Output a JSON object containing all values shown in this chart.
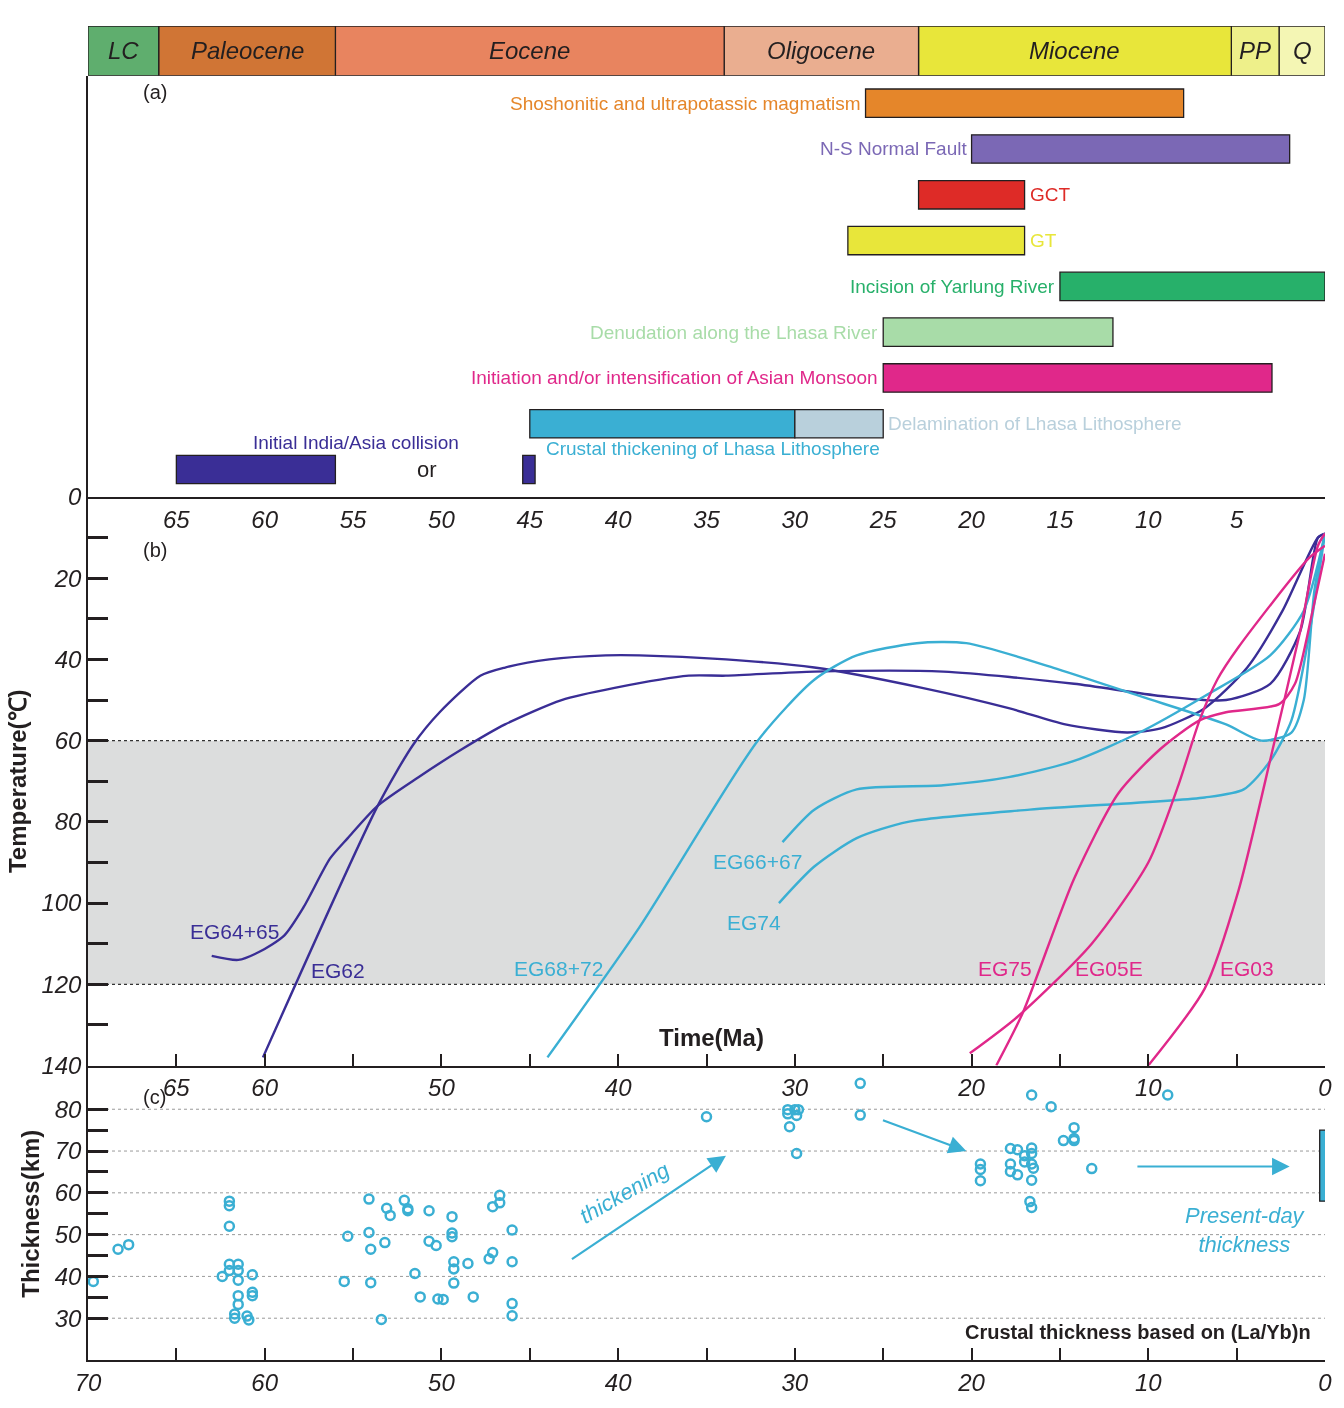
{
  "chart_data": [
    {
      "type": "bar",
      "orientation": "horizontal",
      "stacked": true,
      "categories": [
        null
      ],
      "xlim": [
        70,
        0
      ],
      "tick_labels": false,
      "series": [
        {
          "name": "Q",
          "color": "#f4f6b4",
          "values": [
            2.6
          ]
        },
        {
          "name": "PP",
          "color": "#eef08a",
          "values": [
            2.7
          ]
        },
        {
          "name": "Miocene",
          "color": "#e8e63a",
          "values": [
            17.7
          ]
        },
        {
          "name": "Oligocene",
          "color": "#eaae90",
          "values": [
            11
          ]
        },
        {
          "name": "Eocene",
          "color": "#e8845f",
          "values": [
            22
          ]
        },
        {
          "name": "Paleocene",
          "color": "#d07535",
          "values": [
            10
          ]
        },
        {
          "name": "LC",
          "color": "#5fae6e",
          "values": [
            4
          ]
        }
      ]
    },
    {
      "type": "bar",
      "orientation": "horizontal",
      "categories": [
        null,
        null,
        null,
        null,
        null,
        null,
        null,
        null,
        null
      ],
      "xlim": [
        70,
        0
      ],
      "xticks": [
        65,
        60,
        55,
        50,
        45,
        40,
        35,
        30,
        25,
        20,
        15,
        10,
        5
      ],
      "tick_labels": "x",
      "annotations": [
        "(a)",
        "or"
      ],
      "series": [
        {
          "name": "Shoshonitic and ultrapotassic magmatism",
          "color": "#e5862a",
          "values": [
            18,
            null,
            null,
            null,
            null,
            null,
            null,
            null,
            null
          ],
          "base": [
            8,
            null,
            null,
            null,
            null,
            null,
            null,
            null,
            null
          ]
        },
        {
          "name": "N-S Normal Fault",
          "color": "#7b68b5",
          "values": [
            null,
            18,
            null,
            null,
            null,
            null,
            null,
            null,
            null
          ],
          "base": [
            null,
            2,
            null,
            null,
            null,
            null,
            null,
            null,
            null
          ]
        },
        {
          "name": "GCT",
          "color": "#de2b27",
          "values": [
            null,
            null,
            6,
            null,
            null,
            null,
            null,
            null,
            null
          ],
          "base": [
            null,
            null,
            17,
            null,
            null,
            null,
            null,
            null,
            null
          ]
        },
        {
          "name": "GT",
          "color": "#e8e63a",
          "values": [
            null,
            null,
            null,
            10,
            null,
            null,
            null,
            null,
            null
          ],
          "base": [
            null,
            null,
            null,
            17,
            null,
            null,
            null,
            null,
            null
          ]
        },
        {
          "name": "Incision of Yarlung River",
          "color": "#27b06a",
          "values": [
            null,
            null,
            null,
            null,
            15,
            null,
            null,
            null,
            null
          ],
          "base": [
            null,
            null,
            null,
            null,
            0,
            null,
            null,
            null,
            null
          ]
        },
        {
          "name": "Denudation along the Lhasa River",
          "color": "#a8dca8",
          "values": [
            null,
            null,
            null,
            null,
            null,
            13,
            null,
            null,
            null
          ],
          "base": [
            null,
            null,
            null,
            null,
            null,
            12,
            null,
            null,
            null
          ]
        },
        {
          "name": "Initiation and/or intensification of Asian Monsoon",
          "color": "#e0288a",
          "values": [
            null,
            null,
            null,
            null,
            null,
            null,
            22,
            null,
            null
          ],
          "base": [
            null,
            null,
            null,
            null,
            null,
            null,
            3,
            null,
            null
          ]
        },
        {
          "name": "Crustal thickening of Lhasa Lithosphere",
          "color": "#3aafd3",
          "values": [
            null,
            null,
            null,
            null,
            null,
            null,
            null,
            15,
            null
          ],
          "base": [
            null,
            null,
            null,
            null,
            null,
            null,
            null,
            30,
            null
          ]
        },
        {
          "name": "Delamination of Lhasa Lithosphere",
          "color": "#b9d0dc",
          "values": [
            null,
            null,
            null,
            null,
            null,
            null,
            null,
            5,
            null
          ],
          "base": [
            null,
            null,
            null,
            null,
            null,
            null,
            null,
            25,
            null
          ]
        },
        {
          "name": "Initial India/Asia collision",
          "color": "#3a2e96",
          "values": [
            null,
            null,
            null,
            null,
            null,
            null,
            null,
            null,
            9
          ],
          "base": [
            null,
            null,
            null,
            null,
            null,
            null,
            null,
            null,
            56
          ]
        },
        {
          "color": "#3a2e96",
          "values": [
            null,
            null,
            null,
            null,
            null,
            null,
            null,
            null,
            0.7
          ],
          "base": [
            null,
            null,
            null,
            null,
            null,
            null,
            null,
            null,
            44.7
          ]
        }
      ]
    },
    {
      "type": "line",
      "xlabel": "Time(Ma)",
      "ylabel": "Temperature(℃)",
      "xlim": [
        70,
        0
      ],
      "ylim": [
        140,
        0
      ],
      "xticks": [
        65,
        60,
        {
          "value": 55,
          "label": null
        },
        50,
        {
          "value": 45,
          "label": null
        },
        40,
        {
          "value": 35,
          "label": null
        },
        30,
        {
          "value": 25,
          "label": null
        },
        20,
        {
          "value": 15,
          "label": null
        },
        10,
        {
          "value": 5,
          "label": null
        },
        0
      ],
      "yticks": [
        0,
        20,
        40,
        60,
        80,
        100,
        120,
        140
      ],
      "bands": [
        {
          "axis": "y",
          "from": 60,
          "to": 120,
          "color": "#dcdddd"
        }
      ],
      "annotations": [
        "(b)"
      ],
      "series": [
        {
          "name": "EG64+65",
          "color": "#3a2e96",
          "x": [
            63,
            61.5,
            60.3,
            58.9,
            57.8,
            56.3,
            55.3,
            53.6,
            51.3,
            48.8,
            46.4,
            43.2,
            40.2,
            36,
            33.9,
            28.9,
            21.6,
            14.2,
            9.3,
            5.6,
            3.1,
            1.4,
            0.4,
            0
          ],
          "values": [
            113,
            114,
            112,
            108,
            101,
            89,
            84,
            76,
            69,
            62,
            56,
            50,
            47,
            44,
            44,
            43,
            43,
            46,
            49,
            50,
            46,
            33,
            10,
            9
          ]
        },
        {
          "name": "EG62",
          "color": "#3a2e96",
          "x": [
            60.1,
            53.6,
            51.6,
            50.1,
            47.8,
            46.4,
            43.9,
            40.7,
            38.8,
            33.9,
            28.9,
            22.8,
            17.9,
            14.7,
            11.2,
            9.3,
            6.8,
            4.4,
            2.4,
            0.4,
            0
          ],
          "values": [
            138,
            76,
            61,
            53,
            44,
            42,
            40,
            39,
            39,
            40,
            42,
            47,
            52,
            56,
            58,
            57,
            52,
            42,
            28,
            10,
            9
          ]
        },
        {
          "name": "EG68+72",
          "color": "#3aafd3",
          "x": [
            44,
            38.8,
            32.1,
            28.9,
            26.5,
            23.1,
            20.3,
            15.4,
            10.5,
            5.6,
            3.6,
            1.9,
            1.2,
            0.6,
            0
          ],
          "values": [
            138,
            106,
            60,
            45,
            39,
            36,
            36,
            42,
            49,
            56,
            60,
            58,
            50,
            23,
            9
          ]
        },
        {
          "name": "EG66+67",
          "color": "#3aafd3",
          "x": [
            30.7,
            28.9,
            26.5,
            21.6,
            17.9,
            14.2,
            10.5,
            6.8,
            3.1,
            1.2,
            0
          ],
          "values": [
            85,
            77,
            72,
            71,
            69,
            65,
            58,
            49,
            39,
            28,
            9
          ]
        },
        {
          "name": "EG74",
          "color": "#3aafd3",
          "x": [
            30.9,
            28.9,
            26.5,
            23.6,
            16.7,
            6.8,
            4.6,
            3.1,
            1.9,
            0.9,
            0
          ],
          "values": [
            100,
            91,
            84,
            80,
            77,
            74,
            72,
            65,
            55,
            34,
            9
          ]
        },
        {
          "name": "EG75",
          "color": "#e0288a",
          "x": [
            18.6,
            17.1,
            14.2,
            11.7,
            9.3,
            7.1,
            5.6,
            2.6,
            1.7,
            0.7,
            0
          ],
          "values": [
            140,
            127,
            94,
            73,
            62,
            55,
            53,
            51,
            46,
            28,
            14
          ]
        },
        {
          "name": "EG05E",
          "color": "#e0288a",
          "x": [
            20.1,
            17.4,
            13.2,
            10,
            8.3,
            7.1,
            6.1,
            4.9,
            0.9,
            0
          ],
          "values": [
            137,
            128,
            110,
            90,
            71,
            55,
            45,
            37,
            15,
            12
          ]
        },
        {
          "name": "EG03",
          "color": "#e0288a",
          "x": [
            10,
            6.8,
            4.9,
            2.9,
            1.4,
            0.4,
            0
          ],
          "values": [
            140,
            121,
            97,
            61,
            33,
            12,
            9
          ]
        }
      ]
    },
    {
      "type": "scatter",
      "ylabel": "Thickness(km)",
      "xlim": [
        70,
        0
      ],
      "ylim": [
        20,
        90
      ],
      "marker": "circle",
      "grid": "y",
      "xticks": [
        70,
        {
          "value": 65,
          "label": null
        },
        60,
        {
          "value": 55,
          "label": null
        },
        50,
        {
          "value": 45,
          "label": null
        },
        40,
        {
          "value": 35,
          "label": null
        },
        30,
        {
          "value": 25,
          "label": null
        },
        20,
        {
          "value": 15,
          "label": null
        },
        10,
        {
          "value": 5,
          "label": null
        },
        0
      ],
      "yticks": [
        30,
        40,
        50,
        60,
        70,
        80
      ],
      "annotations": [
        "(c)",
        "thickening",
        "Present-day\nthickness",
        "Crustal thickness based on (La/Yb)n"
      ],
      "series": [
        {
          "color": "#3aafd3",
          "x": [
            69.7,
            68.3,
            67.7,
            62.4,
            62.0,
            62.0,
            62.0,
            62.0,
            61.5,
            62.0,
            61.5,
            61.5,
            60.7,
            61.5,
            61.5,
            61.7,
            61.7,
            61.0,
            60.9,
            60.7,
            60.7,
            55.5,
            55.3,
            54.1,
            54.1,
            54.0,
            54.0,
            53.4,
            53.2,
            53.1,
            52.9,
            52.1,
            51.9,
            51.9,
            51.5,
            51.2,
            50.7,
            50.7,
            50.3,
            50.2,
            49.9,
            49.4,
            49.4,
            49.4,
            49.3,
            49.3,
            49.3,
            48.5,
            48.2,
            47.3,
            47.1,
            47.1,
            46.7,
            46.7,
            46.0,
            46.0,
            46.0,
            46.0,
            35.0,
            30.4,
            30.0,
            29.8,
            30.4,
            29.9,
            30.3,
            29.9,
            26.3,
            26.3,
            19.5,
            19.5,
            19.5,
            17.8,
            17.4,
            17.8,
            17.8,
            17.4,
            17.0,
            17.0,
            16.6,
            16.6,
            16.6,
            16.5,
            16.6,
            16.7,
            16.6,
            16.6,
            15.5,
            14.8,
            14.2,
            14.2,
            14.2,
            13.2,
            8.9
          ],
          "values": [
            38.8,
            46.5,
            47.6,
            40.0,
            58.0,
            56.9,
            52.0,
            42.9,
            42.9,
            41.4,
            41.4,
            39.1,
            40.4,
            35.4,
            33.3,
            31.0,
            30.0,
            30.5,
            29.6,
            36.2,
            35.4,
            38.8,
            49.6,
            50.5,
            58.5,
            46.5,
            38.5,
            29.7,
            48.1,
            56.3,
            54.6,
            58.2,
            56.2,
            55.7,
            40.7,
            35.1,
            55.7,
            48.4,
            47.4,
            34.6,
            34.5,
            54.3,
            50.4,
            49.5,
            43.5,
            41.8,
            38.4,
            43.1,
            35.1,
            44.2,
            45.7,
            56.7,
            57.6,
            59.4,
            51.1,
            43.5,
            33.5,
            30.6,
            78.2,
            79.9,
            79.9,
            79.9,
            78.9,
            78.5,
            75.8,
            69.4,
            86.2,
            78.6,
            66.9,
            65.6,
            62.9,
            70.6,
            70.3,
            66.9,
            65.1,
            64.3,
            67.4,
            68.9,
            70.7,
            69.4,
            66.9,
            65.9,
            63.0,
            57.9,
            56.5,
            83.4,
            80.6,
            72.5,
            75.6,
            73.0,
            72.5,
            65.8,
            83.4
          ]
        },
        {
          "type": "bar",
          "color": "#3aafd3",
          "x": [
            0
          ],
          "values": [
            17
          ],
          "base": [
            58
          ]
        }
      ]
    }
  ]
}
